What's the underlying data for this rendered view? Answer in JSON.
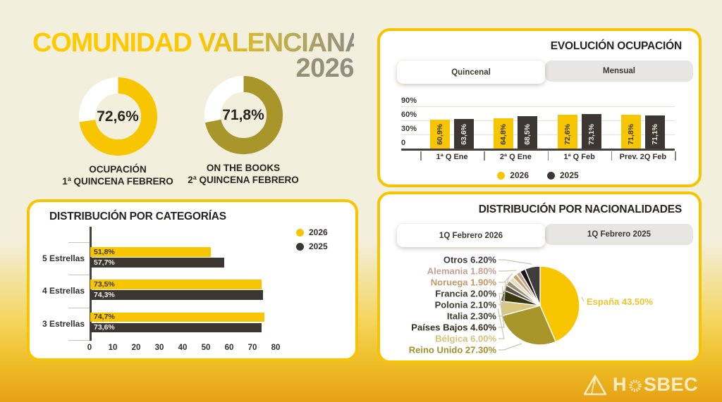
{
  "header": {
    "title": "COMUNIDAD VALENCIANA",
    "year": "2026"
  },
  "footer": {
    "brand": "HOSBEC",
    "brand_left": "H",
    "brand_right": "SBEC"
  },
  "colors": {
    "accent_yellow": "#f8c301",
    "dark_series": "#3d3733",
    "olive": "#a8962b",
    "background_cream": "#f2efdd",
    "background_gold": "#e7a115",
    "card_border": "#f8c301"
  },
  "chart_data": [
    {
      "id": "donut_ocupacion",
      "type": "pie",
      "variant": "donut",
      "value": 72.6,
      "value_label": "72,6%",
      "color": "#f7c600",
      "track_color": "#ffffff",
      "caption": [
        "OCUPACIÓN",
        "1ª QUINCENA FEBRERO"
      ]
    },
    {
      "id": "donut_on_the_books",
      "type": "pie",
      "variant": "donut",
      "value": 71.8,
      "value_label": "71,8%",
      "color": "#a8962b",
      "track_color": "#ffffff",
      "caption": [
        "ON THE BOOKS",
        "2ª QUINCENA FEBRERO"
      ]
    },
    {
      "id": "evolucion",
      "type": "bar",
      "title": "EVOLUCIÓN OCUPACIÓN",
      "tabs": [
        {
          "label": "Quincenal",
          "active": true
        },
        {
          "label": "Mensual",
          "active": false
        }
      ],
      "categories": [
        "1ª Q Ene",
        "2ª Q Ene",
        "1ª Q Feb",
        "Prev. 2Q Feb"
      ],
      "series": [
        {
          "name": "2026",
          "color": "#f7c600",
          "text_color": "#3a352f",
          "values": [
            60.9,
            64.8,
            72.6,
            71.8
          ],
          "value_labels": [
            "60,9%",
            "64,8%",
            "72,6%",
            "71,8%"
          ]
        },
        {
          "name": "2025",
          "color": "#3d3733",
          "text_color": "#f2efe8",
          "values": [
            63.6,
            68.5,
            73.1,
            71.1
          ],
          "value_labels": [
            "63,6%",
            "68,5%",
            "73,1%",
            "71,1%"
          ]
        }
      ],
      "ylim": [
        0,
        90
      ],
      "yticks": [
        {
          "label": "90%",
          "value": 90
        },
        {
          "label": "60%",
          "value": 60
        },
        {
          "label": "30%",
          "value": 30
        },
        {
          "label": "0",
          "value": 0
        }
      ],
      "grid": true,
      "legend_position": "bottom-center"
    },
    {
      "id": "categorias",
      "type": "bar",
      "orientation": "horizontal",
      "title": "DISTRIBUCIÓN POR CATEGORÍAS",
      "categories": [
        "5 Estrellas",
        "4 Estrellas",
        "3 Estrellas"
      ],
      "series": [
        {
          "name": "2026",
          "color": "#f7c600",
          "text_color": "#3a352f",
          "values": [
            51.8,
            73.5,
            74.7
          ],
          "value_labels": [
            "51,8%",
            "73,5%",
            "74,7%"
          ]
        },
        {
          "name": "2025",
          "color": "#3d3733",
          "text_color": "#f2efe8",
          "values": [
            57.7,
            74.3,
            73.6
          ],
          "value_labels": [
            "57,7%",
            "74,3%",
            "73,6%"
          ]
        }
      ],
      "xlim": [
        0,
        80
      ],
      "xticks": [
        0,
        10,
        20,
        30,
        40,
        50,
        60,
        70,
        80
      ],
      "legend_position": "top-right"
    },
    {
      "id": "nacionalidades",
      "type": "pie",
      "title": "DISTRIBUCIÓN POR NACIONALIDADES",
      "tabs": [
        {
          "label": "1Q Febrero 2026",
          "active": true
        },
        {
          "label": "1Q Febrero 2025",
          "active": false
        }
      ],
      "slices": [
        {
          "label": "España",
          "display": "España 43.50%",
          "value": 43.5,
          "color": "#f7c600",
          "label_color": "#efc431",
          "side": "right",
          "row": null
        },
        {
          "label": "Reino Unido",
          "display": "Reino Unido 27.30%",
          "value": 27.3,
          "color": "#a8962b",
          "label_color": "#a18f2b",
          "side": "left",
          "row": 8
        },
        {
          "label": "Bélgica",
          "display": "Bélgica 6.00%",
          "value": 6.0,
          "color": "#d8c77e",
          "label_color": "#d3c279",
          "side": "left",
          "row": 7
        },
        {
          "label": "Países Bajos",
          "display": "Países Bajos 4.60%",
          "value": 4.6,
          "color": "#3b350f",
          "label_color": "#332f1d",
          "side": "left",
          "row": 6
        },
        {
          "label": "Italia",
          "display": "Italia 2.30%",
          "value": 2.3,
          "color": "#5a5348",
          "label_color": "#3e3931",
          "side": "left",
          "row": 5
        },
        {
          "label": "Polonia",
          "display": "Polonia 2.10%",
          "value": 2.1,
          "color": "#97906f",
          "label_color": "#3e3931",
          "side": "left",
          "row": 4
        },
        {
          "label": "Francia",
          "display": "Francia 2.00%",
          "value": 2.0,
          "color": "#e6dcc1",
          "label_color": "#3e3931",
          "side": "left",
          "row": 3
        },
        {
          "label": "Noruega",
          "display": "Noruega 1.90%",
          "value": 1.9,
          "color": "#c89f6f",
          "label_color": "#c49a67",
          "side": "left",
          "row": 2
        },
        {
          "label": "Alemania",
          "display": "Alemania 1.80%",
          "value": 1.8,
          "color": "#c7a295",
          "label_color": "#c3a093",
          "side": "left",
          "row": 1
        },
        {
          "label": "",
          "display": "",
          "value": 2.3,
          "color": "#161616",
          "label_color": null,
          "side": null,
          "row": null
        },
        {
          "label": "Otros",
          "display": "Otros 6.20%",
          "value": 6.2,
          "color": "#3f3e3c",
          "label_color": "#3b3a38",
          "side": "left",
          "row": 0
        }
      ]
    }
  ]
}
